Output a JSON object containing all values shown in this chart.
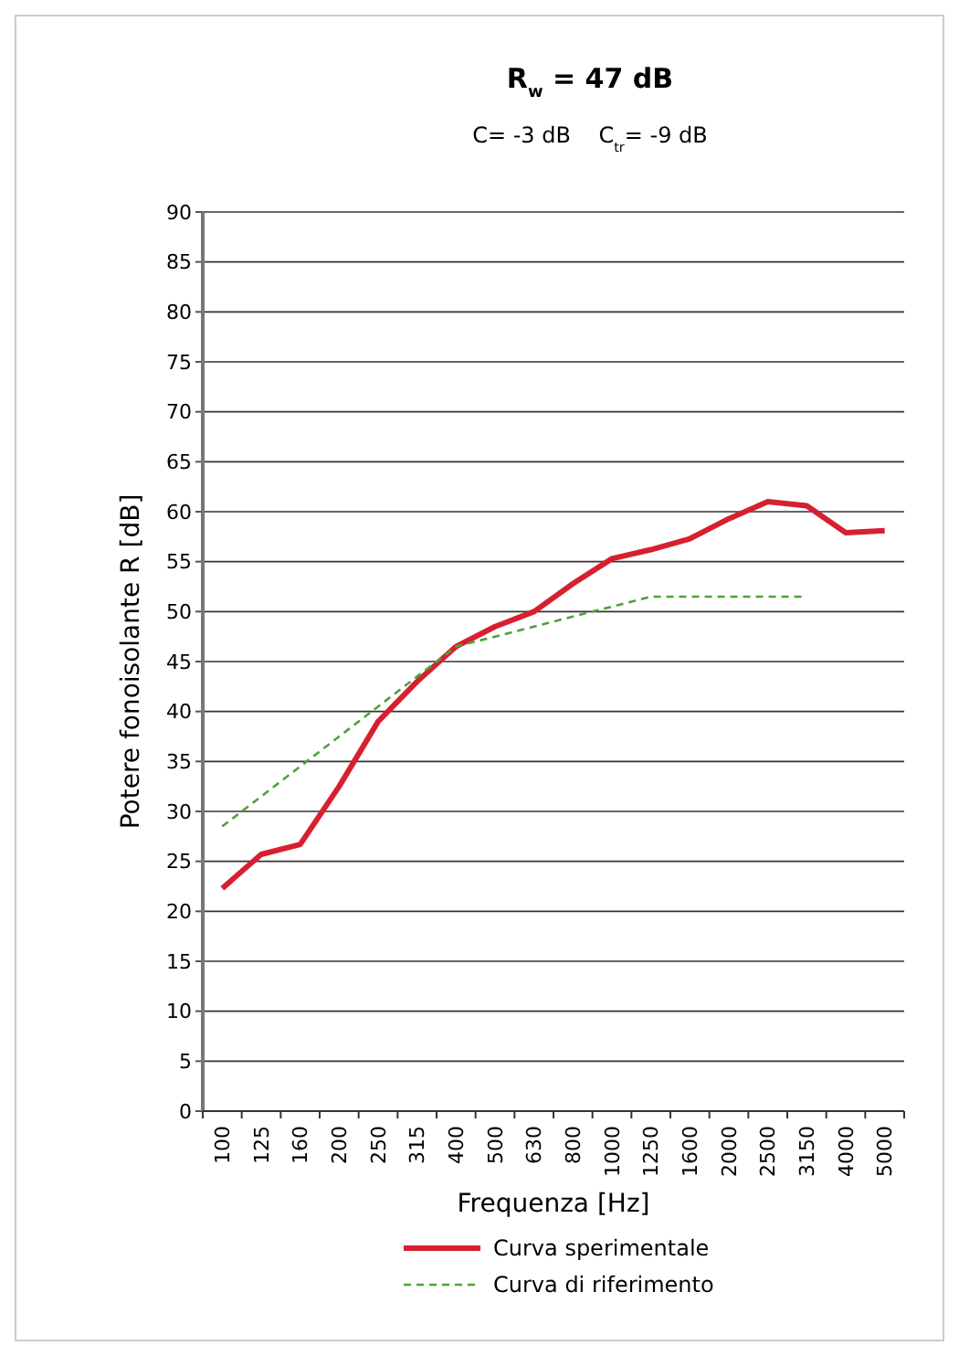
{
  "chart_data": {
    "type": "line",
    "title": "R$_{w}$ = 47 dB",
    "subtitle": "C= -3 dB    C$_{tr}$= -9 dB",
    "xlabel": "Frequenza [Hz]",
    "ylabel": "Potere fonoisolante R [dB]",
    "categories": [
      "100",
      "125",
      "160",
      "200",
      "250",
      "315",
      "400",
      "500",
      "630",
      "800",
      "1000",
      "1250",
      "1600",
      "2000",
      "2500",
      "3150",
      "4000",
      "5000"
    ],
    "series": [
      {
        "name": "Curva sperimentale",
        "color": "#d7202f",
        "line_style": "solid",
        "values": [
          22.3,
          25.7,
          26.7,
          32.5,
          39,
          43,
          46.5,
          48.5,
          50,
          52.8,
          55.3,
          56.2,
          57.3,
          59.3,
          61,
          60.6,
          57.9,
          58.1
        ]
      },
      {
        "name": "Curva di riferimento",
        "color": "#4ea23a",
        "line_style": "dashed",
        "values": [
          28.5,
          31.5,
          34.5,
          37.5,
          40.5,
          43.5,
          46.5,
          47.5,
          48.5,
          49.5,
          50.5,
          51.5,
          51.5,
          51.5,
          51.5,
          51.5,
          null,
          null
        ]
      }
    ],
    "ylim": [
      0,
      90
    ],
    "yticks": [
      0,
      5,
      10,
      15,
      20,
      25,
      30,
      35,
      40,
      45,
      50,
      55,
      60,
      65,
      70,
      75,
      80,
      85,
      90
    ],
    "grid": "y",
    "legend": "bottom"
  }
}
